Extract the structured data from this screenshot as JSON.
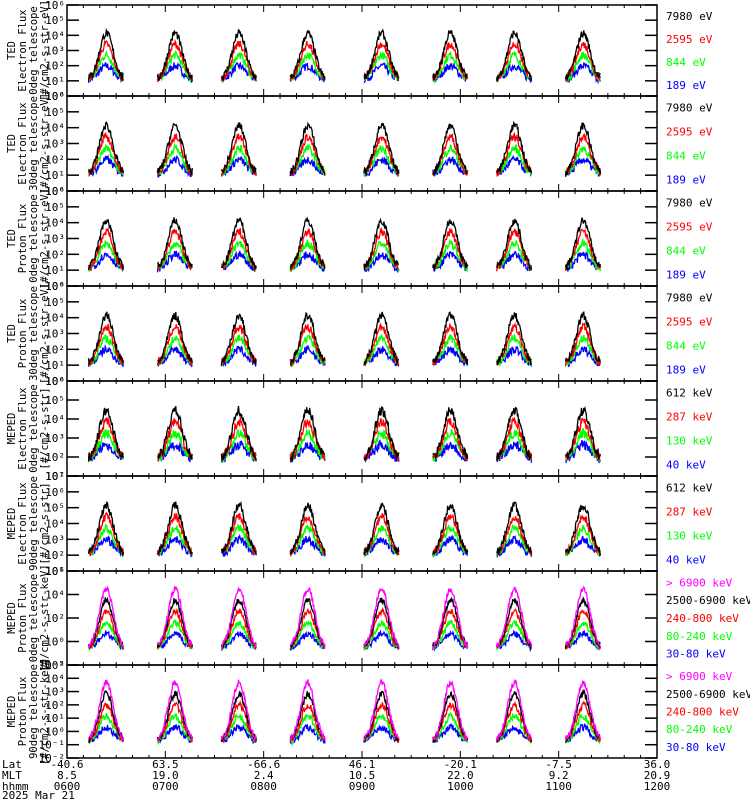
{
  "chart_data": {
    "type": "line",
    "title": "",
    "colors": {
      "black": "#000000",
      "red": "#ff0000",
      "green": "#00ff00",
      "blue": "#0000ff",
      "magenta": "#ff00ff"
    },
    "xaxis": {
      "row_labels": [
        "Lat",
        "MLT",
        "hhmm",
        "2025 Mar 21"
      ],
      "ticks": [
        {
          "lat": "-40.6",
          "mlt": "8.5",
          "hhmm": "0600"
        },
        {
          "lat": "63.5",
          "mlt": "19.0",
          "hhmm": "0700"
        },
        {
          "lat": "-66.6",
          "mlt": "2.4",
          "hhmm": "0800"
        },
        {
          "lat": "46.1",
          "mlt": "10.5",
          "hhmm": "0900"
        },
        {
          "lat": "-20.1",
          "mlt": "22.0",
          "hhmm": "1000"
        },
        {
          "lat": "-7.5",
          "mlt": "9.2",
          "hhmm": "1100"
        },
        {
          "lat": "36.0",
          "mlt": "20.9",
          "hhmm": "1200"
        }
      ],
      "range_hours": [
        6,
        12
      ]
    },
    "panels": [
      {
        "ylabel": [
          "TED",
          "Electron Flux",
          "0deg telescope",
          "[#/cm2-s-str-eV]"
        ],
        "yticks": [
          "10⁰",
          "10¹",
          "10²",
          "10³",
          "10⁴",
          "10⁵",
          "10⁶"
        ],
        "ylim_exp": [
          0,
          6
        ],
        "legend": [
          {
            "label": "7980 eV",
            "color": "black"
          },
          {
            "label": "2595 eV",
            "color": "red"
          },
          {
            "label": "844 eV",
            "color": "green"
          },
          {
            "label": "189 eV",
            "color": "blue"
          }
        ]
      },
      {
        "ylabel": [
          "TED",
          "Electron Flux",
          "30deg telescope",
          "[#/cm2-s-str-eV]"
        ],
        "yticks": [
          "10⁰",
          "10¹",
          "10²",
          "10³",
          "10⁴",
          "10⁵",
          "10⁶"
        ],
        "ylim_exp": [
          0,
          6
        ],
        "legend": [
          {
            "label": "7980 eV",
            "color": "black"
          },
          {
            "label": "2595 eV",
            "color": "red"
          },
          {
            "label": "844 eV",
            "color": "green"
          },
          {
            "label": "189 eV",
            "color": "blue"
          }
        ]
      },
      {
        "ylabel": [
          "TED",
          "Proton Flux",
          "0deg telescope",
          "[#/cm2-s-str-eV]"
        ],
        "yticks": [
          "10⁰",
          "10¹",
          "10²",
          "10³",
          "10⁴",
          "10⁵",
          "10⁶"
        ],
        "ylim_exp": [
          0,
          6
        ],
        "legend": [
          {
            "label": "7980 eV",
            "color": "black"
          },
          {
            "label": "2595 eV",
            "color": "red"
          },
          {
            "label": "844 eV",
            "color": "green"
          },
          {
            "label": "189 eV",
            "color": "blue"
          }
        ]
      },
      {
        "ylabel": [
          "TED",
          "Proton Flux",
          "30deg telescope",
          "[#/cm2-s-str-eV]"
        ],
        "yticks": [
          "10⁰",
          "10¹",
          "10²",
          "10³",
          "10⁴",
          "10⁵",
          "10⁶"
        ],
        "ylim_exp": [
          0,
          6
        ],
        "legend": [
          {
            "label": "7980 eV",
            "color": "black"
          },
          {
            "label": "2595 eV",
            "color": "red"
          },
          {
            "label": "844 eV",
            "color": "green"
          },
          {
            "label": "189 eV",
            "color": "blue"
          }
        ]
      },
      {
        "ylabel": [
          "MEPED",
          "Electron Flux",
          "0deg telescope",
          "[#/cm2-s-str]"
        ],
        "yticks": [
          "10¹",
          "10²",
          "10³",
          "10⁴",
          "10⁵",
          "10⁶"
        ],
        "ylim_exp": [
          1,
          6
        ],
        "legend": [
          {
            "label": "612 keV",
            "color": "black"
          },
          {
            "label": "287 keV",
            "color": "red"
          },
          {
            "label": "130 keV",
            "color": "green"
          },
          {
            "label": "40 keV",
            "color": "blue"
          }
        ]
      },
      {
        "ylabel": [
          "MEPED",
          "Electron Flux",
          "90deg telescope",
          "[#/cm2-s-str]"
        ],
        "yticks": [
          "10¹",
          "10²",
          "10³",
          "10⁴",
          "10⁵",
          "10⁶",
          "10⁷"
        ],
        "ylim_exp": [
          1,
          7
        ],
        "legend": [
          {
            "label": "612 keV",
            "color": "black"
          },
          {
            "label": "287 keV",
            "color": "red"
          },
          {
            "label": "130 keV",
            "color": "green"
          },
          {
            "label": "40 keV",
            "color": "blue"
          }
        ]
      },
      {
        "ylabel": [
          "MEPED",
          "Proton Flux",
          "0deg telescope",
          "[#/cm2-s-str-keV]"
        ],
        "yticks": [
          "10⁻²",
          "10⁰",
          "10²",
          "10⁴",
          "10⁶"
        ],
        "ylim_exp": [
          -2,
          6
        ],
        "legend": [
          {
            "label": "> 6900 keV",
            "color": "magenta"
          },
          {
            "label": "2500-6900 keV",
            "color": "black"
          },
          {
            "label": "240-800 keV",
            "color": "red"
          },
          {
            "label": "80-240 keV",
            "color": "green"
          },
          {
            "label": "30-80 keV",
            "color": "blue"
          }
        ]
      },
      {
        "ylabel": [
          "MEPED",
          "Proton Flux",
          "90deg telescope",
          "[#/cm2-s-str-keV]"
        ],
        "yticks": [
          "10⁻²",
          "10⁻¹",
          "10⁰",
          "10¹",
          "10²",
          "10³",
          "10⁴",
          "10⁵"
        ],
        "ylim_exp": [
          -2,
          5
        ],
        "legend": [
          {
            "label": "> 6900 keV",
            "color": "magenta"
          },
          {
            "label": "2500-6900 keV",
            "color": "black"
          },
          {
            "label": "240-800 keV",
            "color": "red"
          },
          {
            "label": "80-240 keV",
            "color": "green"
          },
          {
            "label": "30-80 keV",
            "color": "blue"
          }
        ]
      }
    ],
    "pass_centers_hours": [
      6.4,
      7.1,
      7.75,
      8.45,
      9.2,
      9.9,
      10.55,
      11.25
    ],
    "grid": false
  }
}
